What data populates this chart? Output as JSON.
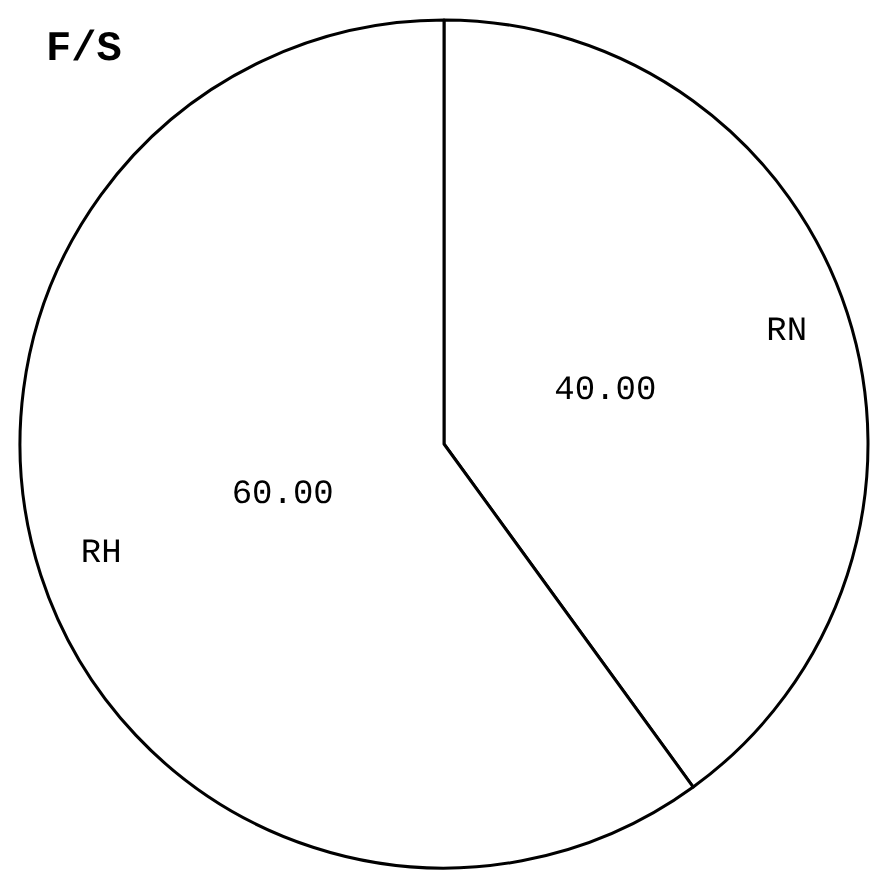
{
  "chart_data": {
    "type": "pie",
    "title": "F/S",
    "categories": [
      "RN",
      "RH"
    ],
    "values": [
      40,
      60
    ],
    "value_labels": [
      "40.00",
      "60.00"
    ],
    "colors": [
      "#ffffff",
      "#ffffff"
    ]
  }
}
